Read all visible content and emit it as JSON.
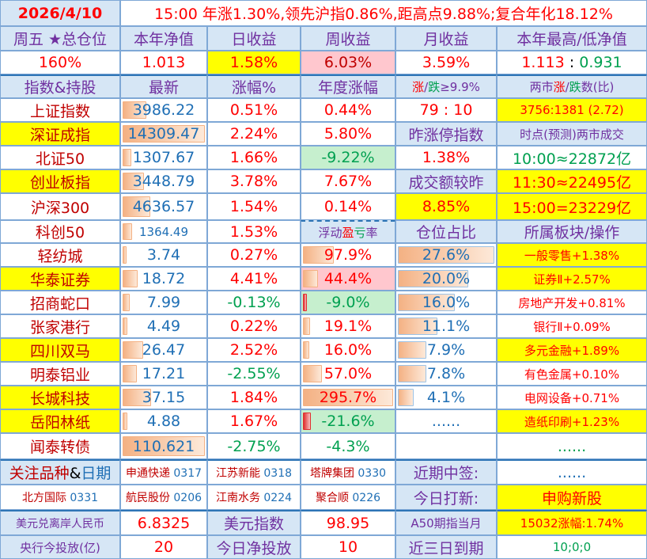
{
  "colors": {
    "red": "#ff0000",
    "darkred": "#c00000",
    "green": "#00a050",
    "blue": "#1f6fb5",
    "purple": "#7030a0",
    "yellow": "#ffff00",
    "pink": "#ffc7ce",
    "lightgreen": "#c6efce",
    "lightblue": "#d6e6f5",
    "white": "#ffffff",
    "black": "#000000"
  },
  "rows": [
    {
      "name": "title-row",
      "cells": [
        {
          "t": "2026/4/10",
          "c": "red",
          "bg": "lightblue",
          "bold": true,
          "name": "date"
        },
        {
          "t": "15:00 年涨1.30%,领先沪指0.86%,距高点9.88%;复合年化18.12%",
          "c": "red",
          "span": 5,
          "name": "summary"
        }
      ]
    },
    {
      "name": "summary-header-row",
      "cells": [
        {
          "t": "周五 ★总仓位",
          "c": "purple",
          "bg": "lightblue"
        },
        {
          "t": "本年净值",
          "c": "purple",
          "bg": "lightblue"
        },
        {
          "t": "日收益",
          "c": "purple",
          "bg": "lightblue"
        },
        {
          "t": "周收益",
          "c": "purple",
          "bg": "lightblue"
        },
        {
          "t": "月收益",
          "c": "purple",
          "bg": "lightblue"
        },
        {
          "t": "本年最高/低净值",
          "c": "purple",
          "bg": "lightblue"
        }
      ]
    },
    {
      "name": "summary-value-row",
      "cells": [
        {
          "t": "160%",
          "c": "red"
        },
        {
          "t": "1.013",
          "c": "red"
        },
        {
          "t": "1.58%",
          "c": "red",
          "bg": "yellow"
        },
        {
          "t": "6.03%",
          "c": "darkred",
          "bg": "pink"
        },
        {
          "t": "3.59%",
          "c": "red"
        },
        {
          "parts": [
            {
              "t": "1.113",
              "c": "red"
            },
            {
              "t": " : ",
              "c": "black"
            },
            {
              "t": "0.931",
              "c": "green"
            }
          ]
        }
      ]
    },
    {
      "name": "index-header-row",
      "sep": true,
      "cells": [
        {
          "t": "指数&持股",
          "c": "purple",
          "bg": "lightblue"
        },
        {
          "t": "最新",
          "c": "purple",
          "bg": "lightblue"
        },
        {
          "t": "涨幅%",
          "c": "purple",
          "bg": "lightblue"
        },
        {
          "t": "年度涨幅",
          "c": "purple",
          "bg": "lightblue"
        },
        {
          "sz": "sm",
          "bg": "lightblue",
          "parts": [
            {
              "t": "涨",
              "c": "red"
            },
            {
              "t": "/",
              "c": "purple"
            },
            {
              "t": "跌",
              "c": "green"
            },
            {
              "t": "≥9.9%",
              "c": "purple"
            }
          ]
        },
        {
          "sz": "sm",
          "bg": "lightblue",
          "parts": [
            {
              "t": "两市",
              "c": "purple"
            },
            {
              "t": "涨",
              "c": "red"
            },
            {
              "t": "/",
              "c": "purple"
            },
            {
              "t": "跌",
              "c": "green"
            },
            {
              "t": "数(比)",
              "c": "purple"
            }
          ]
        }
      ]
    },
    {
      "name": "index-row",
      "cells": [
        {
          "t": "上证指数",
          "c": "darkred"
        },
        {
          "t": "3986.22",
          "c": "blue",
          "bar": "orange",
          "v": 3986.22,
          "max": 14309.47
        },
        {
          "t": "0.51%",
          "c": "red"
        },
        {
          "t": "0.44%",
          "c": "red"
        },
        {
          "t": "79 : 10",
          "c": "red"
        },
        {
          "t": "3756:1381 (2.72)",
          "c": "red",
          "bg": "yellow",
          "sz": "sm"
        }
      ]
    },
    {
      "name": "index-row",
      "cells": [
        {
          "t": "深证成指",
          "c": "darkred",
          "bg": "yellow"
        },
        {
          "t": "14309.47",
          "c": "blue",
          "bar": "orange",
          "v": 14309.47,
          "max": 14309.47
        },
        {
          "t": "2.24%",
          "c": "red"
        },
        {
          "t": "5.80%",
          "c": "red"
        },
        {
          "t": "昨涨停指数",
          "c": "purple",
          "bg": "lightblue"
        },
        {
          "t": "时点(预测)两市成交",
          "c": "purple",
          "bg": "lightblue",
          "sz": "sm"
        }
      ]
    },
    {
      "name": "index-row",
      "cells": [
        {
          "t": "北证50",
          "c": "darkred"
        },
        {
          "t": "1307.67",
          "c": "blue",
          "bar": "orange",
          "v": 1307.67,
          "max": 14309.47
        },
        {
          "t": "1.66%",
          "c": "red"
        },
        {
          "t": "-9.22%",
          "c": "green",
          "bg": "lightgreen"
        },
        {
          "t": "1.38%",
          "c": "red"
        },
        {
          "t": "10:00≈22872亿",
          "c": "green"
        }
      ]
    },
    {
      "name": "index-row",
      "cells": [
        {
          "t": "创业板指",
          "c": "darkred",
          "bg": "yellow"
        },
        {
          "t": "3448.79",
          "c": "blue",
          "bar": "orange",
          "v": 3448.79,
          "max": 14309.47
        },
        {
          "t": "3.78%",
          "c": "red"
        },
        {
          "t": "7.67%",
          "c": "red"
        },
        {
          "t": "成交额较昨",
          "c": "purple",
          "bg": "lightblue"
        },
        {
          "t": "11:30≈22495亿",
          "c": "red",
          "bg": "yellow"
        }
      ]
    },
    {
      "name": "index-row",
      "cells": [
        {
          "t": "沪深300",
          "c": "darkred"
        },
        {
          "t": "4636.57",
          "c": "blue",
          "bar": "orange",
          "v": 4636.57,
          "max": 14309.47
        },
        {
          "t": "1.54%",
          "c": "red"
        },
        {
          "t": "0.14%",
          "c": "red"
        },
        {
          "t": "8.85%",
          "c": "red",
          "bg": "yellow"
        },
        {
          "t": "15:00=23229亿",
          "c": "red",
          "bg": "yellow"
        }
      ]
    },
    {
      "name": "index-row",
      "cells": [
        {
          "t": "科创50",
          "c": "darkred"
        },
        {
          "t": "1364.49",
          "c": "blue",
          "bar": "orange",
          "v": 1364.49,
          "max": 14309.47,
          "sz": "sm"
        },
        {
          "t": "1.53%",
          "c": "red"
        },
        {
          "bg": "lightblue",
          "sz": "sm",
          "dash": true,
          "parts": [
            {
              "t": "浮动",
              "c": "purple"
            },
            {
              "t": "盈",
              "c": "red"
            },
            {
              "t": "亏",
              "c": "green"
            },
            {
              "t": "率",
              "c": "purple"
            }
          ]
        },
        {
          "t": "仓位占比",
          "c": "purple",
          "bg": "lightblue"
        },
        {
          "t": "所属板块/操作",
          "c": "purple",
          "bg": "lightblue"
        }
      ]
    },
    {
      "name": "holding-row",
      "cells": [
        {
          "t": "轻纺城",
          "c": "darkred"
        },
        {
          "t": "3.74",
          "c": "blue",
          "bar": "orange",
          "v": 3.74,
          "max": 110.621
        },
        {
          "t": "0.27%",
          "c": "red"
        },
        {
          "t": "97.9%",
          "c": "red",
          "bar": "orange",
          "v": 97.9,
          "max": 295.7
        },
        {
          "t": "27.6%",
          "c": "blue",
          "bar": "blue",
          "v": 27.6,
          "max": 27.6
        },
        {
          "t": "一般零售+1.38%",
          "c": "red",
          "bg": "yellow",
          "sz": "sm"
        }
      ]
    },
    {
      "name": "holding-row",
      "cells": [
        {
          "t": "华泰证券",
          "c": "darkred",
          "bg": "yellow"
        },
        {
          "t": "18.72",
          "c": "blue",
          "bar": "orange",
          "v": 18.72,
          "max": 110.621
        },
        {
          "t": "4.41%",
          "c": "red"
        },
        {
          "t": "44.4%",
          "c": "red",
          "bg": "pink",
          "bar": "orange",
          "v": 44.4,
          "max": 295.7
        },
        {
          "t": "20.0%",
          "c": "blue",
          "bar": "blue",
          "v": 20.0,
          "max": 27.6
        },
        {
          "t": "证券Ⅱ+2.57%",
          "c": "red",
          "bg": "yellow",
          "sz": "sm"
        }
      ]
    },
    {
      "name": "holding-row",
      "cells": [
        {
          "t": "招商蛇口",
          "c": "darkred"
        },
        {
          "t": "7.99",
          "c": "blue",
          "bar": "orange",
          "v": 7.99,
          "max": 110.621
        },
        {
          "t": "-0.13%",
          "c": "green"
        },
        {
          "t": "-9.0%",
          "c": "green",
          "bg": "lightgreen",
          "bar": "red",
          "v": -9.0,
          "max": 295.7
        },
        {
          "t": "16.0%",
          "c": "blue",
          "bar": "blue",
          "v": 16.0,
          "max": 27.6
        },
        {
          "t": "房地产开发+0.81%",
          "c": "red",
          "sz": "sm"
        }
      ]
    },
    {
      "name": "holding-row",
      "cells": [
        {
          "t": "张家港行",
          "c": "darkred"
        },
        {
          "t": "4.49",
          "c": "blue",
          "bar": "orange",
          "v": 4.49,
          "max": 110.621
        },
        {
          "t": "0.22%",
          "c": "red"
        },
        {
          "t": "19.1%",
          "c": "red",
          "bar": "orange",
          "v": 19.1,
          "max": 295.7
        },
        {
          "t": "11.1%",
          "c": "blue",
          "bar": "blue",
          "v": 11.1,
          "max": 27.6
        },
        {
          "t": "银行Ⅱ+0.09%",
          "c": "red",
          "sz": "sm"
        }
      ]
    },
    {
      "name": "holding-row",
      "cells": [
        {
          "t": "四川双马",
          "c": "darkred",
          "bg": "yellow"
        },
        {
          "t": "26.47",
          "c": "blue",
          "bar": "orange",
          "v": 26.47,
          "max": 110.621
        },
        {
          "t": "2.52%",
          "c": "red"
        },
        {
          "t": "16.0%",
          "c": "red",
          "bar": "orange",
          "v": 16.0,
          "max": 295.7
        },
        {
          "t": "7.9%",
          "c": "blue",
          "bar": "blue",
          "v": 7.9,
          "max": 27.6
        },
        {
          "t": "多元金融+1.89%",
          "c": "red",
          "bg": "yellow",
          "sz": "sm"
        }
      ]
    },
    {
      "name": "holding-row",
      "cells": [
        {
          "t": "明泰铝业",
          "c": "darkred"
        },
        {
          "t": "17.21",
          "c": "blue",
          "bar": "orange",
          "v": 17.21,
          "max": 110.621
        },
        {
          "t": "-2.55%",
          "c": "green"
        },
        {
          "t": "57.0%",
          "c": "red",
          "bar": "orange",
          "v": 57.0,
          "max": 295.7
        },
        {
          "t": "7.8%",
          "c": "blue",
          "bar": "blue",
          "v": 7.8,
          "max": 27.6
        },
        {
          "t": "有色金属+0.10%",
          "c": "red",
          "sz": "sm"
        }
      ]
    },
    {
      "name": "holding-row",
      "cells": [
        {
          "t": "长城科技",
          "c": "darkred",
          "bg": "yellow"
        },
        {
          "t": "37.15",
          "c": "blue",
          "bar": "orange",
          "v": 37.15,
          "max": 110.621
        },
        {
          "t": "1.84%",
          "c": "red"
        },
        {
          "t": "295.7%",
          "c": "red",
          "bar": "orange",
          "v": 295.7,
          "max": 295.7
        },
        {
          "t": "4.1%",
          "c": "blue",
          "bar": "blue",
          "v": 4.1,
          "max": 27.6
        },
        {
          "t": "电网设备+0.71%",
          "c": "red",
          "sz": "sm"
        }
      ]
    },
    {
      "name": "holding-row",
      "cells": [
        {
          "t": "岳阳林纸",
          "c": "darkred",
          "bg": "yellow"
        },
        {
          "t": "4.88",
          "c": "blue",
          "bar": "orange",
          "v": 4.88,
          "max": 110.621
        },
        {
          "t": "1.67%",
          "c": "red"
        },
        {
          "t": "-21.6%",
          "c": "green",
          "bg": "lightgreen",
          "bar": "red",
          "v": -21.6,
          "max": 295.7
        },
        {
          "t": "......",
          "c": "blue"
        },
        {
          "t": "造纸印刷+1.23%",
          "c": "red",
          "bg": "yellow",
          "sz": "sm"
        }
      ]
    },
    {
      "name": "holding-row",
      "cells": [
        {
          "t": "闻泰转债",
          "c": "darkred"
        },
        {
          "t": "110.621",
          "c": "blue",
          "bar": "orange",
          "v": 110.621,
          "max": 110.621
        },
        {
          "t": "-2.75%",
          "c": "green"
        },
        {
          "t": "-4.3%",
          "c": "green"
        },
        {
          "t": "",
          "c": "blue"
        },
        {
          "t": "......",
          "c": "green"
        }
      ]
    },
    {
      "name": "watchlist-row",
      "sep": true,
      "cells": [
        {
          "bg": "lightblue",
          "parts": [
            {
              "t": "关注品种",
              "c": "darkred"
            },
            {
              "t": "&",
              "c": "black"
            },
            {
              "t": "日期",
              "c": "blue"
            }
          ]
        },
        {
          "sz": "xs",
          "parts": [
            {
              "t": "申通快递",
              "c": "darkred"
            },
            {
              "t": " 0317",
              "c": "blue"
            }
          ]
        },
        {
          "sz": "xs",
          "parts": [
            {
              "t": "江苏新能",
              "c": "darkred"
            },
            {
              "t": " 0318",
              "c": "blue"
            }
          ]
        },
        {
          "sz": "xs",
          "parts": [
            {
              "t": "塔牌集团",
              "c": "darkred"
            },
            {
              "t": " 0330",
              "c": "blue"
            }
          ]
        },
        {
          "t": "近期中签:",
          "c": "purple",
          "bg": "lightblue"
        },
        {
          "t": "......",
          "c": "blue"
        }
      ]
    },
    {
      "name": "watchlist-row",
      "cells": [
        {
          "sz": "xs",
          "parts": [
            {
              "t": "北方国际",
              "c": "darkred"
            },
            {
              "t": " 0331",
              "c": "blue"
            }
          ]
        },
        {
          "sz": "xs",
          "parts": [
            {
              "t": "航民股份",
              "c": "darkred"
            },
            {
              "t": " 0206",
              "c": "blue"
            }
          ]
        },
        {
          "sz": "xs",
          "parts": [
            {
              "t": "江南水务",
              "c": "darkred"
            },
            {
              "t": " 0224",
              "c": "blue"
            }
          ]
        },
        {
          "sz": "xs",
          "parts": [
            {
              "t": "聚合顺",
              "c": "darkred"
            },
            {
              "t": " 0226",
              "c": "blue"
            }
          ]
        },
        {
          "t": "今日打新:",
          "c": "purple",
          "bg": "lightblue"
        },
        {
          "t": "申购新股",
          "c": "red",
          "bg": "yellow"
        }
      ]
    },
    {
      "name": "market-row",
      "sep": true,
      "cells": [
        {
          "t": "美元兑离岸人民币",
          "c": "purple",
          "bg": "lightblue",
          "sz": "xs"
        },
        {
          "t": "6.8325",
          "c": "red"
        },
        {
          "t": "美元指数",
          "c": "purple",
          "bg": "lightblue"
        },
        {
          "t": "98.95",
          "c": "red"
        },
        {
          "t": "A50期指当月",
          "c": "purple",
          "bg": "lightblue",
          "sz": "sm"
        },
        {
          "t": "15032涨幅:1.74%",
          "c": "red",
          "bg": "yellow",
          "sz": "sm"
        }
      ]
    },
    {
      "name": "market-row",
      "cells": [
        {
          "t": "央行今投放(亿)",
          "c": "purple",
          "bg": "lightblue",
          "sz": "sm"
        },
        {
          "t": "20",
          "c": "red"
        },
        {
          "t": "今日净投放",
          "c": "purple",
          "bg": "lightblue"
        },
        {
          "t": "10",
          "c": "red"
        },
        {
          "t": "近三日到期",
          "c": "purple",
          "bg": "lightblue"
        },
        {
          "t": "10;0;0",
          "c": "green",
          "sz": "sm"
        }
      ]
    }
  ]
}
